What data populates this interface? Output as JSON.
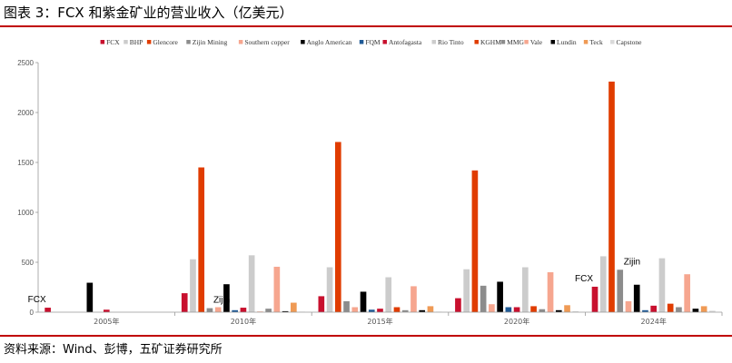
{
  "title": "图表 3：FCX 和紫金矿业的营业收入（亿美元）",
  "source": "资料来源：Wind、彭博，五矿证券研究所",
  "chart_data": {
    "type": "bar",
    "title": "图表 3：FCX 和紫金矿业的营业收入（亿美元）",
    "xlabel": "",
    "ylabel": "",
    "ylim": [
      0,
      2500
    ],
    "yticks": [
      0,
      500,
      1000,
      1500,
      2000,
      2500
    ],
    "grid": false,
    "legend_position": "top",
    "categories": [
      "2005年",
      "2010年",
      "2015年",
      "2020年",
      "2024年"
    ],
    "series": [
      {
        "name": "FCX",
        "color": "#c8102e",
        "values": [
          45,
          190,
          160,
          140,
          255
        ]
      },
      {
        "name": "BHP",
        "color": "#cccccc",
        "values": [
          null,
          530,
          450,
          430,
          560
        ]
      },
      {
        "name": "Glencore",
        "color": "#e03c00",
        "values": [
          null,
          1450,
          1705,
          1420,
          2310
        ]
      },
      {
        "name": "Zijin Mining",
        "color": "#8c8c8c",
        "values": [
          null,
          40,
          110,
          265,
          425
        ]
      },
      {
        "name": "Southern copper",
        "color": "#f6a68f",
        "values": [
          null,
          50,
          50,
          80,
          110
        ]
      },
      {
        "name": "Anglo American",
        "color": "#000000",
        "values": [
          295,
          280,
          205,
          305,
          275
        ]
      },
      {
        "name": "FQM",
        "color": "#1f5a96",
        "values": [
          null,
          20,
          25,
          50,
          20
        ]
      },
      {
        "name": "Antofagasta",
        "color": "#c8102e",
        "values": [
          25,
          45,
          35,
          50,
          65
        ]
      },
      {
        "name": "Rio Tinto",
        "color": "#cccccc",
        "values": [
          null,
          570,
          350,
          450,
          540
        ]
      },
      {
        "name": "KGHM",
        "color": "#e03c00",
        "values": [
          null,
          5,
          50,
          60,
          85
        ]
      },
      {
        "name": "MMG",
        "color": "#8c8c8c",
        "values": [
          null,
          35,
          20,
          30,
          50
        ]
      },
      {
        "name": "Vale",
        "color": "#f6a68f",
        "values": [
          null,
          455,
          260,
          400,
          380
        ]
      },
      {
        "name": "Lundin",
        "color": "#000000",
        "values": [
          null,
          10,
          20,
          20,
          35
        ]
      },
      {
        "name": "Teck",
        "color": "#ef9a55",
        "values": [
          null,
          95,
          60,
          70,
          60
        ]
      },
      {
        "name": "Capstone",
        "color": "#d9d9d9",
        "values": [
          null,
          5,
          5,
          10,
          15
        ]
      }
    ],
    "annotations": [
      {
        "text": "FCX",
        "category": "2005年",
        "series": "FCX"
      },
      {
        "text": "Zijin",
        "category": "2010年",
        "series": "Zijin Mining"
      },
      {
        "text": "FCX",
        "category": "2024年",
        "series": "FCX"
      },
      {
        "text": "Zijin",
        "category": "2024年",
        "series": "Zijin Mining"
      }
    ]
  }
}
